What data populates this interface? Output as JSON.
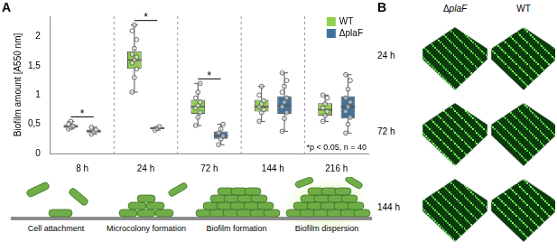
{
  "panel_letters": [
    "A",
    "B"
  ],
  "chart_data": {
    "type": "box",
    "categories": [
      "8 h",
      "24 h",
      "72 h",
      "144 h",
      "216 h"
    ],
    "y_label": "Biofilm amount [A550 nm]",
    "ylim": [
      0,
      2.35
    ],
    "yticks": [
      0,
      {
        "value": 0.5,
        "label": "0,5"
      },
      1,
      {
        "value": 1.5,
        "label": "1,5"
      },
      2
    ],
    "grid": false,
    "legend": "upper right",
    "series": [
      {
        "name": "WT",
        "color": "#92d050",
        "min": [
          0.42,
          1.05,
          0.48,
          0.55,
          0.55
        ],
        "q1": [
          0.44,
          1.45,
          0.68,
          0.72,
          0.65
        ],
        "median": [
          0.46,
          1.6,
          0.8,
          0.8,
          0.75
        ],
        "q3": [
          0.49,
          1.75,
          0.92,
          0.92,
          0.86
        ],
        "max": [
          0.55,
          2.2,
          1.2,
          1.15,
          1.0
        ],
        "points": [
          [
            0.42,
            0.45,
            0.47,
            0.5,
            0.55
          ],
          [
            1.05,
            1.3,
            1.45,
            1.55,
            1.6,
            1.65,
            1.7,
            1.8,
            1.95,
            2.1,
            2.2
          ],
          [
            0.48,
            0.62,
            0.7,
            0.78,
            0.82,
            0.88,
            0.95,
            1.05,
            1.2
          ],
          [
            0.55,
            0.7,
            0.75,
            0.8,
            0.85,
            0.9,
            1.0,
            1.15
          ],
          [
            0.55,
            0.65,
            0.72,
            0.78,
            0.85,
            0.95,
            1.0
          ]
        ]
      },
      {
        "name": "ΔplaF",
        "color": "#41719c",
        "min": [
          0.33,
          0.4,
          0.15,
          0.38,
          0.35
        ],
        "q1": [
          0.36,
          0.42,
          0.25,
          0.68,
          0.6
        ],
        "median": [
          0.38,
          0.43,
          0.3,
          0.82,
          0.8
        ],
        "q3": [
          0.41,
          0.45,
          0.38,
          0.98,
          0.98
        ],
        "max": [
          0.45,
          0.46,
          0.5,
          1.38,
          1.35
        ],
        "points": [
          [
            0.33,
            0.37,
            0.4,
            0.45
          ],
          [
            0.4,
            0.43,
            0.46
          ],
          [
            0.15,
            0.25,
            0.3,
            0.35,
            0.42,
            0.5
          ],
          [
            0.38,
            0.6,
            0.7,
            0.8,
            0.88,
            0.95,
            1.05,
            1.15,
            1.25,
            1.38
          ],
          [
            0.35,
            0.5,
            0.62,
            0.72,
            0.8,
            0.88,
            0.95,
            1.1,
            1.25,
            1.35
          ]
        ]
      }
    ],
    "annotations": [
      {
        "category": "8 h",
        "text": "*"
      },
      {
        "category": "24 h",
        "text": "*"
      },
      {
        "category": "72 h",
        "text": "*"
      }
    ],
    "note": "*p < 0.05, n = 40"
  },
  "schematic": {
    "stages": [
      "Cell attachment",
      "Microcolony formation",
      "Biofilm formation",
      "Biofilm dispersion"
    ]
  },
  "images": {
    "columns": [
      "ΔplaF",
      "WT"
    ],
    "rows": [
      "24 h",
      "72 h",
      "144 h"
    ]
  }
}
